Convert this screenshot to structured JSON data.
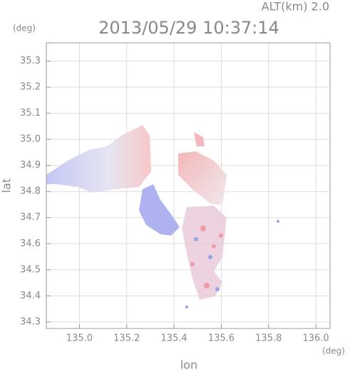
{
  "chart_data": {
    "type": "field",
    "title": "2013/05/29 10:37:14",
    "annotation": "ALT(km) 2.0",
    "x_unit": "(deg)",
    "y_unit": "(deg)",
    "xlabel": "lon",
    "ylabel": "lat",
    "xlim": [
      134.86,
      136.06
    ],
    "ylim": [
      34.275,
      35.37
    ],
    "xticks": [
      {
        "value": 135,
        "label": "135.0"
      },
      135.2,
      135.4,
      135.6,
      135.8,
      {
        "value": 136,
        "label": "136.0"
      }
    ],
    "yticks": [
      34.3,
      34.4,
      34.5,
      34.6,
      34.7,
      34.8,
      34.9,
      {
        "value": 35,
        "label": "35.0"
      },
      35.1,
      35.2,
      35.3
    ],
    "grid": true
  }
}
